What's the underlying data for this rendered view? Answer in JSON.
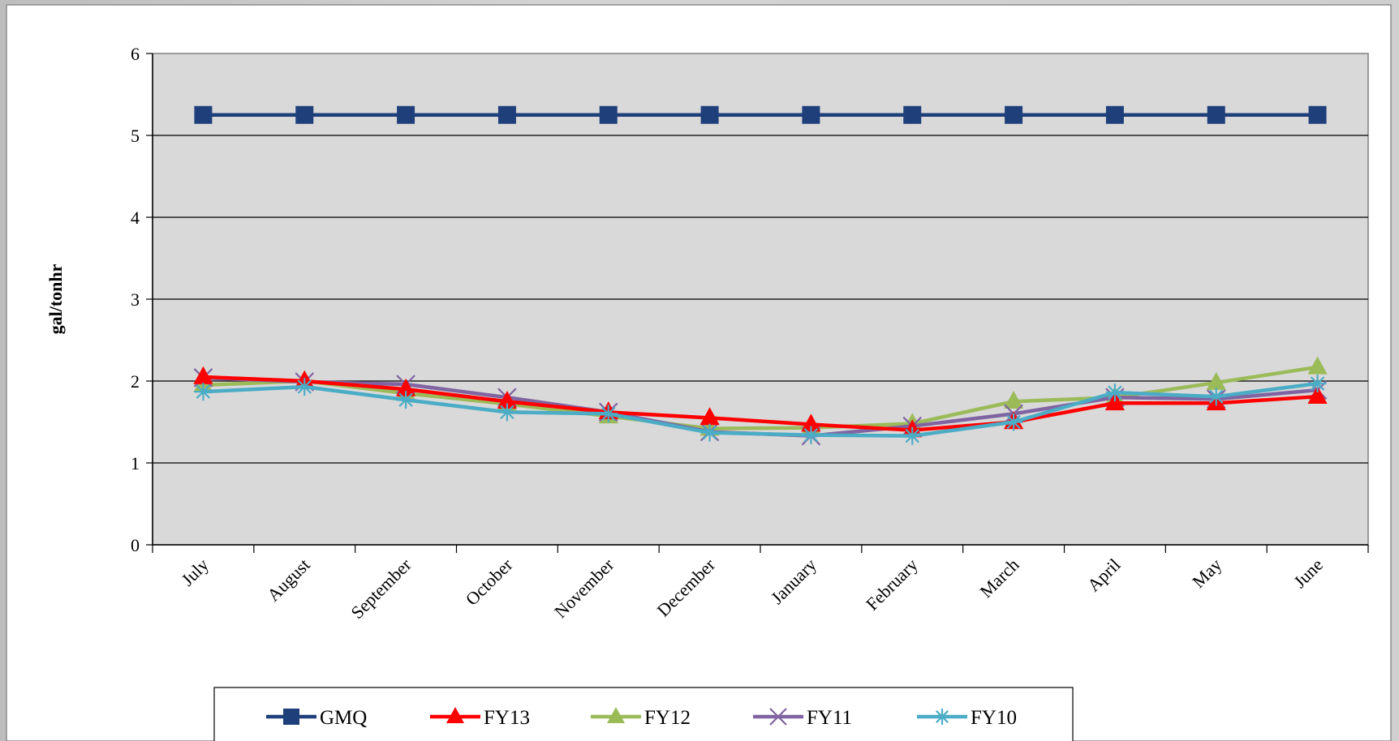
{
  "chart_data": {
    "type": "line",
    "title": "",
    "xlabel": "",
    "ylabel": "gal/tonhr",
    "ylim": [
      0,
      6
    ],
    "yticks": [
      0,
      1,
      2,
      3,
      4,
      5,
      6
    ],
    "grid": "horizontal",
    "legend_position": "bottom",
    "categories": [
      "July",
      "August",
      "September",
      "October",
      "November",
      "December",
      "January",
      "February",
      "March",
      "April",
      "May",
      "June"
    ],
    "series": [
      {
        "name": "GMQ",
        "color": "#1f3f7a",
        "marker": "square",
        "values": [
          5.25,
          5.25,
          5.25,
          5.25,
          5.25,
          5.25,
          5.25,
          5.25,
          5.25,
          5.25,
          5.25,
          5.25
        ]
      },
      {
        "name": "FY13",
        "color": "#ff0000",
        "marker": "triangle",
        "values": [
          2.05,
          2.0,
          1.9,
          1.75,
          1.62,
          1.55,
          1.47,
          1.4,
          1.5,
          1.73,
          1.73,
          1.81
        ]
      },
      {
        "name": "FY12",
        "color": "#9bbb59",
        "marker": "triangle",
        "values": [
          1.95,
          2.0,
          1.85,
          1.72,
          1.57,
          1.42,
          1.43,
          1.48,
          1.75,
          1.8,
          1.98,
          2.17
        ]
      },
      {
        "name": "FY11",
        "color": "#8064a2",
        "marker": "x",
        "values": [
          2.04,
          1.99,
          1.96,
          1.8,
          1.62,
          1.38,
          1.33,
          1.45,
          1.6,
          1.8,
          1.78,
          1.89
        ]
      },
      {
        "name": "FY10",
        "color": "#4bacc6",
        "marker": "star",
        "values": [
          1.87,
          1.93,
          1.77,
          1.62,
          1.6,
          1.37,
          1.34,
          1.33,
          1.5,
          1.86,
          1.81,
          1.97
        ]
      }
    ]
  }
}
